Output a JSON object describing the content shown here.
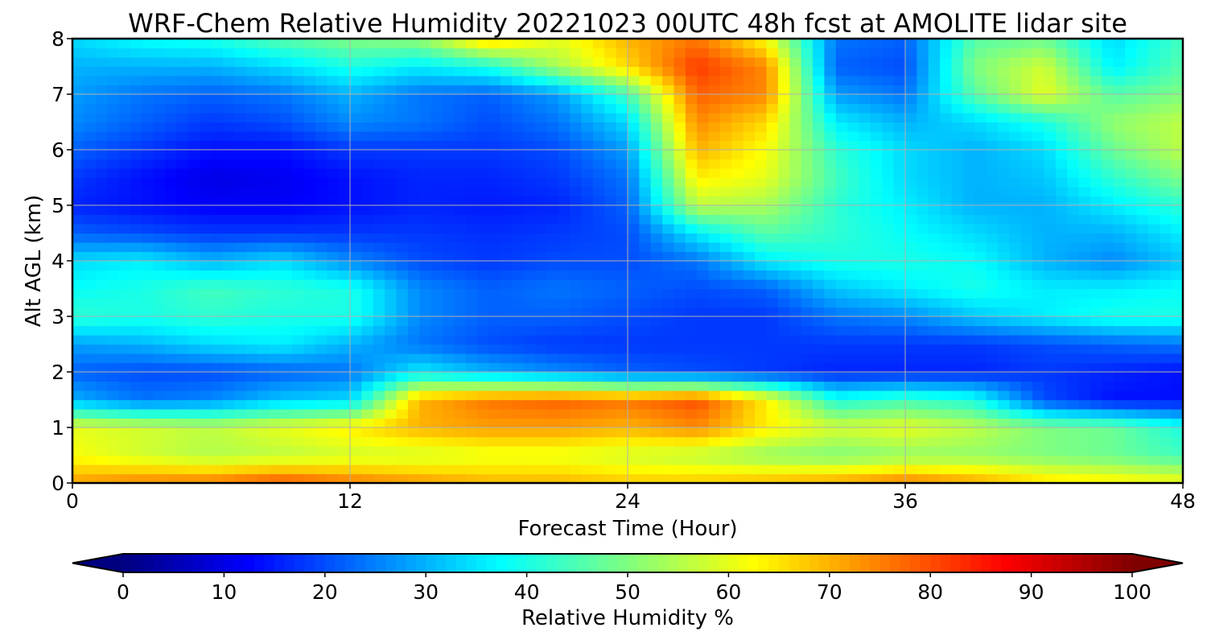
{
  "chart_data": {
    "type": "heatmap",
    "title": "WRF-Chem Relative Humidity 20221023 00UTC 48h fcst at AMOLITE lidar site",
    "xlabel": "Forecast Time (Hour)",
    "ylabel": "Alt AGL (km)",
    "xlim": [
      0,
      48
    ],
    "ylim": [
      0,
      8
    ],
    "x_ticks": [
      "0",
      "12",
      "24",
      "36",
      "48"
    ],
    "y_ticks": [
      "0",
      "1",
      "2",
      "3",
      "4",
      "5",
      "6",
      "7",
      "8"
    ],
    "grid": true,
    "colormap": "jet",
    "colorbar": {
      "label": "Relative Humidity %",
      "range": [
        0,
        100
      ],
      "ticks": [
        "0",
        "10",
        "20",
        "30",
        "40",
        "50",
        "60",
        "70",
        "80",
        "90",
        "100"
      ],
      "extend": "both"
    },
    "x": [
      0,
      3,
      6,
      9,
      12,
      15,
      18,
      21,
      24,
      27,
      30,
      33,
      36,
      39,
      42,
      45,
      48
    ],
    "y": [
      0,
      0.5,
      1,
      1.5,
      2,
      2.5,
      3,
      3.5,
      4,
      4.5,
      5,
      5.5,
      6,
      6.5,
      7,
      7.5,
      8
    ],
    "z": [
      [
        72,
        75,
        76,
        80,
        76,
        73,
        70,
        70,
        68,
        68,
        70,
        72,
        76,
        72,
        66,
        64,
        62
      ],
      [
        62,
        58,
        55,
        56,
        58,
        58,
        60,
        60,
        58,
        56,
        52,
        50,
        52,
        52,
        50,
        48,
        44
      ],
      [
        60,
        58,
        56,
        60,
        64,
        70,
        72,
        72,
        70,
        74,
        64,
        58,
        60,
        56,
        50,
        48,
        40
      ],
      [
        30,
        24,
        26,
        32,
        34,
        70,
        76,
        78,
        76,
        80,
        64,
        40,
        44,
        40,
        20,
        14,
        14
      ],
      [
        22,
        20,
        20,
        22,
        24,
        36,
        30,
        26,
        22,
        20,
        18,
        16,
        16,
        16,
        18,
        16,
        14
      ],
      [
        28,
        30,
        34,
        36,
        30,
        24,
        20,
        18,
        18,
        18,
        18,
        18,
        18,
        18,
        20,
        22,
        24
      ],
      [
        42,
        40,
        42,
        40,
        40,
        26,
        22,
        22,
        20,
        18,
        18,
        24,
        26,
        32,
        36,
        40,
        40
      ],
      [
        38,
        40,
        44,
        42,
        40,
        26,
        22,
        24,
        22,
        20,
        22,
        32,
        36,
        40,
        36,
        36,
        38
      ],
      [
        34,
        36,
        30,
        34,
        26,
        20,
        18,
        20,
        20,
        24,
        36,
        40,
        40,
        38,
        30,
        26,
        32
      ],
      [
        22,
        20,
        18,
        18,
        18,
        18,
        17,
        18,
        20,
        36,
        46,
        42,
        38,
        34,
        30,
        30,
        36
      ],
      [
        16,
        14,
        12,
        12,
        14,
        16,
        15,
        16,
        22,
        56,
        54,
        42,
        36,
        30,
        30,
        36,
        42
      ],
      [
        18,
        14,
        10,
        11,
        14,
        16,
        16,
        18,
        24,
        64,
        60,
        44,
        34,
        30,
        32,
        42,
        50
      ],
      [
        22,
        18,
        14,
        14,
        18,
        18,
        18,
        20,
        28,
        70,
        62,
        42,
        34,
        30,
        34,
        48,
        56
      ],
      [
        26,
        22,
        18,
        20,
        26,
        24,
        20,
        24,
        34,
        74,
        66,
        36,
        30,
        34,
        40,
        52,
        56
      ],
      [
        28,
        24,
        22,
        24,
        30,
        24,
        22,
        28,
        44,
        78,
        74,
        28,
        24,
        46,
        60,
        46,
        50
      ],
      [
        30,
        30,
        30,
        34,
        40,
        36,
        40,
        54,
        66,
        82,
        74,
        22,
        20,
        50,
        58,
        36,
        46
      ],
      [
        34,
        38,
        40,
        46,
        50,
        52,
        68,
        60,
        70,
        76,
        62,
        24,
        22,
        46,
        48,
        34,
        44
      ]
    ]
  }
}
